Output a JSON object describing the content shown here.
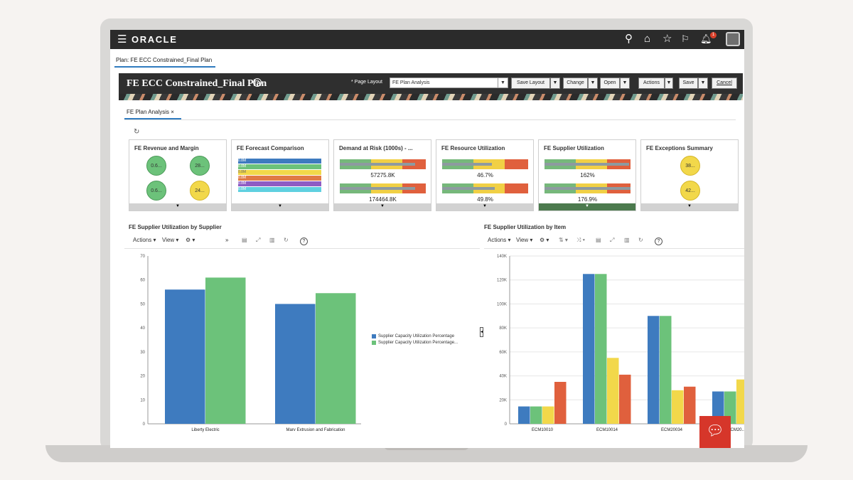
{
  "app": {
    "logo": "ORACLE",
    "menu_icon": "hamburger-icon",
    "top_icons": [
      "search-icon",
      "home-icon",
      "star-icon",
      "flag-icon",
      "bell-icon"
    ],
    "notification_count": "1"
  },
  "breadcrumb": "Plan: FE ECC Constrained_Final Plan",
  "header": {
    "title": "FE ECC Constrained_Final Plan",
    "help": "?",
    "page_layout_label": "* Page Layout",
    "page_layout_value": "FE Plan Analysis",
    "buttons": {
      "save_layout": "Save Layout",
      "change": "Change",
      "open": "Open",
      "actions": "Actions",
      "save": "Save",
      "cancel": "Cancel"
    }
  },
  "tab": {
    "label": "FE Plan Analysis",
    "close": "×"
  },
  "refresh_icon": "↻",
  "tiles": [
    {
      "title": "FE Revenue and Margin",
      "bubbles": [
        "0.6...",
        "28...",
        "0.6...",
        "24..."
      ],
      "bubble_colors": [
        "green",
        "green",
        "green",
        "yellow"
      ]
    },
    {
      "title": "FE Forecast Comparison",
      "bars": [
        {
          "color": "#3e7bbf",
          "label": "0.8M"
        },
        {
          "color": "#6cc27a",
          "label": "0.8M"
        },
        {
          "color": "#f2d84a",
          "label": "0.8M"
        },
        {
          "color": "#e07a45",
          "label": "0.8M"
        },
        {
          "color": "#8e5cc4",
          "label": "0.8M"
        },
        {
          "color": "#5fd0e0",
          "label": "0.8M"
        }
      ]
    },
    {
      "title": "Demand at Risk (1000s) - ...",
      "values": [
        "57275.8K",
        "174464.8K"
      ]
    },
    {
      "title": "FE Resource Utilization",
      "values": [
        "46.7%",
        "49.8%"
      ]
    },
    {
      "title": "FE Supplier Utilization",
      "values": [
        "162%",
        "176.9%"
      ]
    },
    {
      "title": "FE Exceptions Summary",
      "bubbles": [
        "38...",
        "42..."
      ]
    }
  ],
  "left_chart": {
    "section_title": "FE Supplier Utilization by Supplier",
    "toolbar": {
      "actions": "Actions ▾",
      "view": "View ▾",
      "gear": "⚙ ▾",
      "more": "»"
    }
  },
  "right_chart": {
    "section_title": "FE Supplier Utilization by Item",
    "toolbar": {
      "actions": "Actions ▾",
      "view": "View ▾",
      "gear": "⚙ ▾"
    }
  },
  "chart_data": [
    {
      "type": "bar",
      "categories": [
        "Liberty Electric",
        "Marv Extrusion and Fabrication"
      ],
      "series": [
        {
          "name": "Supplier Capacity Utilization Percentage",
          "color": "#3e7bbf",
          "values": [
            56,
            50
          ]
        },
        {
          "name": "Supplier Capacity Utilization Percentage...",
          "color": "#6cc27a",
          "values": [
            61,
            54.5
          ]
        }
      ],
      "ylim": [
        0,
        70
      ],
      "yticks": [
        0,
        10,
        20,
        30,
        40,
        50,
        60,
        70
      ],
      "grid": false,
      "legend": "right"
    },
    {
      "type": "bar",
      "categories": [
        "ECM10010",
        "ECM10014",
        "ECM20034",
        "ECM20..."
      ],
      "series": [
        {
          "color": "#3e7bbf",
          "values": [
            14500,
            125000,
            90000,
            27000
          ]
        },
        {
          "color": "#6cc27a",
          "values": [
            14500,
            125000,
            90000,
            27000
          ]
        },
        {
          "color": "#f2d84a",
          "values": [
            14500,
            55000,
            28000,
            37000
          ]
        },
        {
          "color": "#e0603d",
          "values": [
            35000,
            41000,
            31000,
            null
          ]
        }
      ],
      "ylim": [
        0,
        140000
      ],
      "yticks": [
        "0",
        "20K",
        "40K",
        "60K",
        "80K",
        "100K",
        "120K",
        "140K"
      ],
      "grid": true
    }
  ]
}
